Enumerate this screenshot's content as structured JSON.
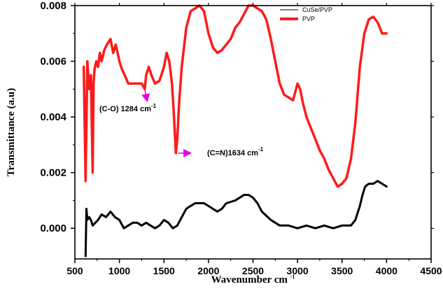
{
  "chart_data": {
    "type": "line",
    "xlabel": "Wavenumber cm",
    "xlabel_sup": "-1",
    "ylabel": "Transmittance (a.u)",
    "xlim": [
      500,
      4500
    ],
    "ylim": [
      -0.0011,
      0.008
    ],
    "x_ticks": [
      "500",
      "1000",
      "1500",
      "2000",
      "2500",
      "3000",
      "3500",
      "4000",
      "4500"
    ],
    "x_tick_values": [
      500,
      1000,
      1500,
      2000,
      2500,
      3000,
      3500,
      4000,
      4500
    ],
    "y_ticks": [
      "0.000",
      "0.002",
      "0.004",
      "0.006",
      "0.008"
    ],
    "y_tick_values": [
      0.0,
      0.002,
      0.004,
      0.006,
      0.008
    ],
    "grid": false,
    "legend_position": "top-right",
    "series": [
      {
        "name": "CuSe/PVP",
        "color": "#000000",
        "x": [
          620,
          630,
          640,
          660,
          680,
          700,
          730,
          760,
          800,
          850,
          900,
          950,
          1000,
          1050,
          1100,
          1150,
          1200,
          1250,
          1300,
          1350,
          1400,
          1450,
          1500,
          1550,
          1600,
          1650,
          1700,
          1750,
          1800,
          1850,
          1900,
          1950,
          2000,
          2050,
          2100,
          2150,
          2200,
          2300,
          2400,
          2450,
          2500,
          2550,
          2600,
          2700,
          2800,
          2900,
          3000,
          3100,
          3200,
          3300,
          3400,
          3500,
          3600,
          3650,
          3700,
          3730,
          3760,
          3800,
          3850,
          3900,
          3950,
          4000
        ],
        "y": [
          -0.001,
          0.0007,
          0.0003,
          0.0004,
          0.0003,
          0.0001,
          0.0002,
          0.0003,
          0.0005,
          0.0004,
          0.0006,
          0.0004,
          0.0003,
          0.0,
          0.0001,
          0.0002,
          0.0002,
          0.0001,
          0.0002,
          0.0001,
          0.0,
          0.0001,
          0.0003,
          0.0002,
          0.0,
          0.0001,
          0.0004,
          0.0007,
          0.0008,
          0.0009,
          0.0009,
          0.0009,
          0.0008,
          0.0007,
          0.0006,
          0.0007,
          0.0009,
          0.001,
          0.0012,
          0.0012,
          0.0011,
          0.0009,
          0.0006,
          0.0003,
          0.0001,
          0.0001,
          0.0,
          0.0001,
          0.0,
          0.0001,
          0.0,
          0.0001,
          0.0001,
          0.0003,
          0.0008,
          0.0012,
          0.0015,
          0.0016,
          0.0016,
          0.0017,
          0.0016,
          0.0015
        ]
      },
      {
        "name": "PVP",
        "color": "#ff1a1a",
        "x": [
          600,
          620,
          640,
          660,
          680,
          700,
          710,
          720,
          740,
          760,
          780,
          800,
          830,
          860,
          900,
          930,
          960,
          1000,
          1030,
          1060,
          1100,
          1150,
          1200,
          1250,
          1284,
          1300,
          1330,
          1360,
          1400,
          1450,
          1500,
          1530,
          1560,
          1590,
          1610,
          1634,
          1650,
          1670,
          1700,
          1750,
          1800,
          1850,
          1900,
          1950,
          2000,
          2050,
          2100,
          2150,
          2200,
          2250,
          2300,
          2350,
          2400,
          2450,
          2500,
          2550,
          2600,
          2650,
          2700,
          2750,
          2800,
          2850,
          2900,
          2950,
          3000,
          3030,
          3060,
          3100,
          3150,
          3200,
          3250,
          3300,
          3350,
          3400,
          3450,
          3500,
          3550,
          3600,
          3650,
          3700,
          3750,
          3800,
          3850,
          3900,
          3950,
          4000
        ],
        "y": [
          0.0058,
          0.0017,
          0.006,
          0.005,
          0.0055,
          0.002,
          0.0052,
          0.0057,
          0.006,
          0.0058,
          0.0063,
          0.006,
          0.0064,
          0.0066,
          0.0068,
          0.0063,
          0.0066,
          0.006,
          0.0057,
          0.0055,
          0.0052,
          0.0052,
          0.0052,
          0.0052,
          0.005,
          0.0055,
          0.0058,
          0.0055,
          0.0052,
          0.0053,
          0.0058,
          0.0063,
          0.006,
          0.0052,
          0.0042,
          0.0027,
          0.0032,
          0.0045,
          0.0058,
          0.0072,
          0.0078,
          0.0079,
          0.008,
          0.0078,
          0.007,
          0.0065,
          0.0063,
          0.0064,
          0.0066,
          0.0068,
          0.0072,
          0.0074,
          0.0077,
          0.008,
          0.008,
          0.0079,
          0.0078,
          0.0075,
          0.0068,
          0.006,
          0.0052,
          0.0048,
          0.0047,
          0.0046,
          0.0052,
          0.005,
          0.0045,
          0.004,
          0.0036,
          0.0032,
          0.0028,
          0.0025,
          0.0021,
          0.0018,
          0.0015,
          0.0016,
          0.0018,
          0.0025,
          0.0038,
          0.0058,
          0.007,
          0.0075,
          0.0076,
          0.0074,
          0.007,
          0.007
        ]
      }
    ],
    "annotations": [
      {
        "label": "(C-O) 1284 cm",
        "sup": "-1",
        "color": "#e600e6"
      },
      {
        "label": "(C=N)1634 cm",
        "sup": "-1",
        "color": "#e600e6"
      }
    ]
  }
}
